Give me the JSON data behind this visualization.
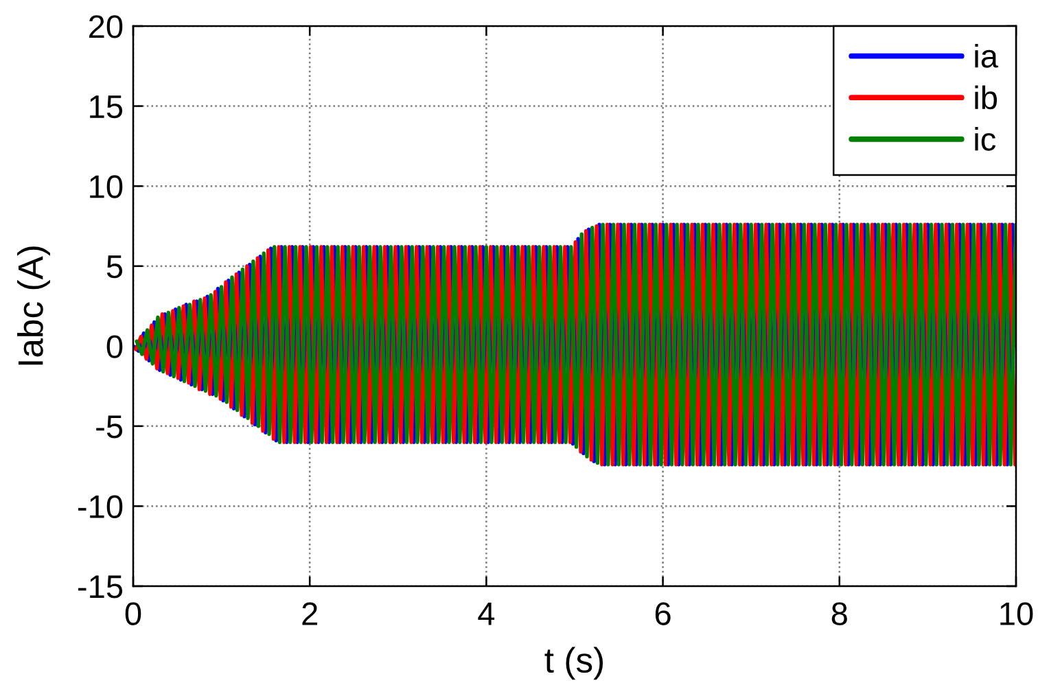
{
  "chart_data": {
    "type": "line",
    "xlabel": "t (s)",
    "ylabel": "Iabc (A)",
    "xlim": [
      0,
      10
    ],
    "ylim": [
      -15,
      20
    ],
    "xticks": [
      0,
      2,
      4,
      6,
      8,
      10
    ],
    "yticks": [
      -15,
      -10,
      -5,
      0,
      5,
      10,
      15,
      20
    ],
    "grid": true,
    "legend": "top right",
    "series": [
      {
        "name": "ia",
        "color": "#0000ff",
        "x": [
          0,
          0.06,
          0.12,
          0.18,
          0.24,
          0.3,
          0.36,
          0.42,
          0.48,
          0.54,
          0.6,
          0.66,
          0.72,
          0.78,
          0.84,
          0.9,
          0.96,
          1.02,
          1.08,
          1.14,
          1.2,
          1.26,
          1.32,
          1.38,
          1.44,
          1.5,
          1.56,
          1.62,
          1.68,
          1.74,
          1.8,
          1.86,
          1.92,
          1.98,
          2.04,
          2.1,
          2.16,
          2.22,
          2.28,
          2.34,
          2.4,
          2.46,
          2.52,
          2.58,
          2.64,
          2.7,
          2.76,
          2.82,
          2.88,
          2.94,
          3,
          3.06,
          3.12,
          3.18,
          3.24,
          3.3,
          3.36,
          3.42,
          3.48,
          3.54,
          3.6,
          3.66,
          3.72,
          3.78,
          3.84,
          3.9,
          3.96,
          4.02,
          4.08,
          4.14,
          4.2,
          4.26,
          4.32,
          4.38,
          4.44,
          4.5,
          4.56,
          4.62,
          4.68,
          4.74,
          4.8,
          4.86,
          4.92,
          4.98,
          5.04,
          5.1,
          5.16,
          5.22,
          5.28,
          5.34,
          5.4,
          5.46,
          5.52,
          5.58,
          5.64,
          5.7,
          5.76,
          5.82,
          5.88,
          5.94,
          6,
          6.06,
          6.12,
          6.18,
          6.24,
          6.3,
          6.36,
          6.42,
          6.48,
          6.54,
          6.6,
          6.66,
          6.72,
          6.78,
          6.84,
          6.9,
          6.96,
          7.02,
          7.08,
          7.14,
          7.2,
          7.26,
          7.32,
          7.38,
          7.44,
          7.5,
          7.56,
          7.62,
          7.68,
          7.74,
          7.8,
          7.86,
          7.92,
          7.98,
          8.04,
          8.1,
          8.16,
          8.22,
          8.28,
          8.34,
          8.4,
          8.46,
          8.52,
          8.58,
          8.64,
          8.7,
          8.76,
          8.82,
          8.88,
          8.94,
          9,
          9.06,
          9.12,
          9.18,
          9.24,
          9.3,
          9.36,
          9.42,
          9.48,
          9.54,
          9.6,
          9.66,
          9.72,
          9.78,
          9.84,
          9.9,
          9.96
        ],
        "values": [
          0,
          -0.3,
          0.8,
          -0.9,
          1.5,
          -1.5,
          2,
          -1.8,
          2.3,
          -2.1,
          2.6,
          -2.4,
          2.8,
          -2.7,
          3.1,
          -3,
          3.6,
          -3.4,
          4.1,
          -3.9,
          4.6,
          -4.4,
          5.1,
          -4.9,
          5.6,
          -5.4,
          6.1,
          -5.9,
          6.2,
          -6,
          6.2,
          -6,
          6.2,
          -6,
          6.2,
          -6,
          6.2,
          -6,
          6.2,
          -6,
          6.2,
          -6,
          6.2,
          -6,
          6.2,
          -6,
          6.2,
          -6,
          6.2,
          -6,
          6.2,
          -6,
          6.2,
          -6,
          6.2,
          -6,
          6.2,
          -6,
          6.2,
          -6,
          6.2,
          -6,
          6.2,
          -6,
          6.2,
          -6,
          6.2,
          -6,
          6.2,
          -6,
          6.2,
          -6,
          6.2,
          -6,
          6.2,
          -6,
          6.2,
          -6,
          6.2,
          -6,
          6.2,
          -6,
          6.2,
          -6.1,
          6.7,
          -6.7,
          7.3,
          -7.2,
          7.6,
          -7.4,
          7.6,
          -7.4,
          7.6,
          -7.4,
          7.6,
          -7.4,
          7.6,
          -7.4,
          7.6,
          -7.4,
          7.6,
          -7.4,
          7.6,
          -7.4,
          7.6,
          -7.4,
          7.6,
          -7.4,
          7.6,
          -7.4,
          7.6,
          -7.4,
          7.6,
          -7.4,
          7.6,
          -7.4,
          7.6,
          -7.4,
          7.6,
          -7.4,
          7.6,
          -7.4,
          7.6,
          -7.4,
          7.6,
          -7.4,
          7.6,
          -7.4,
          7.6,
          -7.4,
          7.6,
          -7.4,
          7.6,
          -7.4,
          7.6,
          -7.4,
          7.6,
          -7.4,
          7.6,
          -7.4,
          7.6,
          -7.4,
          7.6,
          -7.4,
          7.6,
          -7.4,
          7.6,
          -7.4,
          7.6,
          -7.4,
          7.6,
          -7.4,
          7.6,
          -7.4,
          7.6,
          -7.4,
          7.6,
          -7.4,
          7.6,
          -7.4,
          7.6,
          -7.4,
          7.6,
          -7.4,
          7.6,
          -7.4,
          7.6
        ]
      },
      {
        "name": "ib",
        "color": "#ff0000",
        "x": [
          0.03,
          0.09,
          0.15,
          0.21,
          0.27,
          0.33,
          0.39,
          0.45,
          0.51,
          0.57,
          0.63,
          0.69,
          0.75,
          0.81,
          0.87,
          0.93,
          0.99,
          1.05,
          1.11,
          1.17,
          1.23,
          1.29,
          1.35,
          1.41,
          1.47,
          1.53,
          1.59,
          1.65,
          1.71,
          1.77,
          1.83,
          1.89,
          1.95,
          2.01,
          2.07,
          2.13,
          2.19,
          2.25,
          2.31,
          2.37,
          2.43,
          2.49,
          2.55,
          2.61,
          2.67,
          2.73,
          2.79,
          2.85,
          2.91,
          2.97,
          3.03,
          3.09,
          3.15,
          3.21,
          3.27,
          3.33,
          3.39,
          3.45,
          3.51,
          3.57,
          3.63,
          3.69,
          3.75,
          3.81,
          3.87,
          3.93,
          3.99,
          4.05,
          4.11,
          4.17,
          4.23,
          4.29,
          4.35,
          4.41,
          4.47,
          4.53,
          4.59,
          4.65,
          4.71,
          4.77,
          4.83,
          4.89,
          4.95,
          5.01,
          5.07,
          5.13,
          5.19,
          5.25,
          5.31,
          5.37,
          5.43,
          5.49,
          5.55,
          5.61,
          5.67,
          5.73,
          5.79,
          5.85,
          5.91,
          5.97,
          6.03,
          6.09,
          6.15,
          6.21,
          6.27,
          6.33,
          6.39,
          6.45,
          6.51,
          6.57,
          6.63,
          6.69,
          6.75,
          6.81,
          6.87,
          6.93,
          6.99,
          7.05,
          7.11,
          7.17,
          7.23,
          7.29,
          7.35,
          7.41,
          7.47,
          7.53,
          7.59,
          7.65,
          7.71,
          7.77,
          7.83,
          7.89,
          7.95,
          8.01,
          8.07,
          8.13,
          8.19,
          8.25,
          8.31,
          8.37,
          8.43,
          8.49,
          8.55,
          8.61,
          8.67,
          8.73,
          8.79,
          8.85,
          8.91,
          8.97,
          9.03,
          9.09,
          9.15,
          9.21,
          9.27,
          9.33,
          9.39,
          9.45,
          9.51,
          9.57,
          9.63,
          9.69,
          9.75,
          9.81,
          9.87,
          9.93,
          9.99
        ],
        "values": [
          -0.2,
          0.6,
          -0.8,
          1.3,
          -1.4,
          2,
          -1.7,
          2.2,
          -2,
          2.5,
          -2.3,
          2.8,
          -2.7,
          3,
          -3,
          3.4,
          -3.3,
          4,
          -3.8,
          4.5,
          -4.3,
          5,
          -4.8,
          5.5,
          -5.3,
          6,
          -5.8,
          6.2,
          -6,
          6.2,
          -6,
          6.2,
          -6,
          6.2,
          -6,
          6.2,
          -6,
          6.2,
          -6,
          6.2,
          -6,
          6.2,
          -6,
          6.2,
          -6,
          6.2,
          -6,
          6.2,
          -6,
          6.2,
          -6,
          6.2,
          -6,
          6.2,
          -6,
          6.2,
          -6,
          6.2,
          -6,
          6.2,
          -6,
          6.2,
          -6,
          6.2,
          -6,
          6.2,
          -6,
          6.2,
          -6,
          6.2,
          -6,
          6.2,
          -6,
          6.2,
          -6,
          6.2,
          -6,
          6.2,
          -6,
          6.2,
          -6,
          6.2,
          -6,
          6.5,
          -6.6,
          7.2,
          -7.1,
          7.5,
          -7.4,
          7.6,
          -7.4,
          7.6,
          -7.4,
          7.6,
          -7.4,
          7.6,
          -7.4,
          7.6,
          -7.4,
          7.6,
          -7.4,
          7.6,
          -7.4,
          7.6,
          -7.4,
          7.6,
          -7.4,
          7.6,
          -7.4,
          7.6,
          -7.4,
          7.6,
          -7.4,
          7.6,
          -7.4,
          7.6,
          -7.4,
          7.6,
          -7.4,
          7.6,
          -7.4,
          7.6,
          -7.4,
          7.6,
          -7.4,
          7.6,
          -7.4,
          7.6,
          -7.4,
          7.6,
          -7.4,
          7.6,
          -7.4,
          7.6,
          -7.4,
          7.6,
          -7.4,
          7.6,
          -7.4,
          7.6,
          -7.4,
          7.6,
          -7.4,
          7.6,
          -7.4,
          7.6,
          -7.4,
          7.6,
          -7.4,
          7.6,
          -7.4,
          7.6,
          -7.4,
          7.6,
          -7.4,
          7.6,
          -7.4,
          7.6,
          -7.4,
          7.6,
          -7.4,
          7.6,
          -7.4,
          7.6,
          -7.4,
          7.6,
          -7.4
        ]
      },
      {
        "name": "ic",
        "color": "#008000",
        "x": [
          0.04,
          0.1,
          0.16,
          0.22,
          0.28,
          0.34,
          0.4,
          0.46,
          0.52,
          0.58,
          0.64,
          0.7,
          0.76,
          0.82,
          0.88,
          0.94,
          1,
          1.06,
          1.12,
          1.18,
          1.24,
          1.3,
          1.36,
          1.42,
          1.48,
          1.54,
          1.6,
          1.66,
          1.72,
          1.78,
          1.84,
          1.9,
          1.96,
          2.02,
          2.08,
          2.14,
          2.2,
          2.26,
          2.32,
          2.38,
          2.44,
          2.5,
          2.56,
          2.62,
          2.68,
          2.74,
          2.8,
          2.86,
          2.92,
          2.98,
          3.04,
          3.1,
          3.16,
          3.22,
          3.28,
          3.34,
          3.4,
          3.46,
          3.52,
          3.58,
          3.64,
          3.7,
          3.76,
          3.82,
          3.88,
          3.94,
          4,
          4.06,
          4.12,
          4.18,
          4.24,
          4.3,
          4.36,
          4.42,
          4.48,
          4.54,
          4.6,
          4.66,
          4.72,
          4.78,
          4.84,
          4.9,
          4.96,
          5.02,
          5.08,
          5.14,
          5.2,
          5.26,
          5.32,
          5.38,
          5.44,
          5.5,
          5.56,
          5.62,
          5.68,
          5.74,
          5.8,
          5.86,
          5.92,
          5.98,
          6.04,
          6.1,
          6.16,
          6.22,
          6.28,
          6.34,
          6.4,
          6.46,
          6.52,
          6.58,
          6.64,
          6.7,
          6.76,
          6.82,
          6.88,
          6.94,
          7,
          7.06,
          7.12,
          7.18,
          7.24,
          7.3,
          7.36,
          7.42,
          7.48,
          7.54,
          7.6,
          7.66,
          7.72,
          7.78,
          7.84,
          7.9,
          7.96,
          8.02,
          8.08,
          8.14,
          8.2,
          8.26,
          8.32,
          8.38,
          8.44,
          8.5,
          8.56,
          8.62,
          8.68,
          8.74,
          8.8,
          8.86,
          8.92,
          8.98,
          9.04,
          9.1,
          9.16,
          9.22,
          9.28,
          9.34,
          9.4,
          9.46,
          9.52,
          9.58,
          9.64,
          9.7,
          9.76,
          9.82,
          9.88,
          9.94,
          10
        ],
        "values": [
          0.3,
          -0.5,
          1,
          -1.1,
          1.8,
          -1.6,
          2.1,
          -1.9,
          2.4,
          -2.2,
          2.6,
          -2.5,
          2.9,
          -2.8,
          3.2,
          -3.1,
          3.7,
          -3.5,
          4.3,
          -4,
          4.8,
          -4.5,
          5.3,
          -5,
          5.8,
          -5.5,
          6.2,
          -6,
          6.2,
          -6,
          6.2,
          -6,
          6.2,
          -6,
          6.2,
          -6,
          6.2,
          -6,
          6.2,
          -6,
          6.2,
          -6,
          6.2,
          -6,
          6.2,
          -6,
          6.2,
          -6,
          6.2,
          -6,
          6.2,
          -6,
          6.2,
          -6,
          6.2,
          -6,
          6.2,
          -6,
          6.2,
          -6,
          6.2,
          -6,
          6.2,
          -6,
          6.2,
          -6,
          6.2,
          -6,
          6.2,
          -6,
          6.2,
          -6,
          6.2,
          -6,
          6.2,
          -6,
          6.2,
          -6,
          6.2,
          -6,
          6.2,
          -6,
          6.2,
          -6.3,
          7,
          -6.9,
          7.4,
          -7.3,
          7.6,
          -7.4,
          7.6,
          -7.4,
          7.6,
          -7.4,
          7.6,
          -7.4,
          7.6,
          -7.4,
          7.6,
          -7.4,
          7.6,
          -7.4,
          7.6,
          -7.4,
          7.6,
          -7.4,
          7.6,
          -7.4,
          7.6,
          -7.4,
          7.6,
          -7.4,
          7.6,
          -7.4,
          7.6,
          -7.4,
          7.6,
          -7.4,
          7.6,
          -7.4,
          7.6,
          -7.4,
          7.6,
          -7.4,
          7.6,
          -7.4,
          7.6,
          -7.4,
          7.6,
          -7.4,
          7.6,
          -7.4,
          7.6,
          -7.4,
          7.6,
          -7.4,
          7.6,
          -7.4,
          7.6,
          -7.4,
          7.6,
          -7.4,
          7.6,
          -7.4,
          7.6,
          -7.4,
          7.6,
          -7.4,
          7.6,
          -7.4,
          7.6,
          -7.4,
          7.6,
          -7.4,
          7.6,
          -7.4,
          7.6,
          -7.4,
          7.6,
          -7.4,
          7.6,
          -7.4,
          7.6,
          -7.4,
          7.6,
          -7.4,
          7.6
        ]
      }
    ]
  }
}
